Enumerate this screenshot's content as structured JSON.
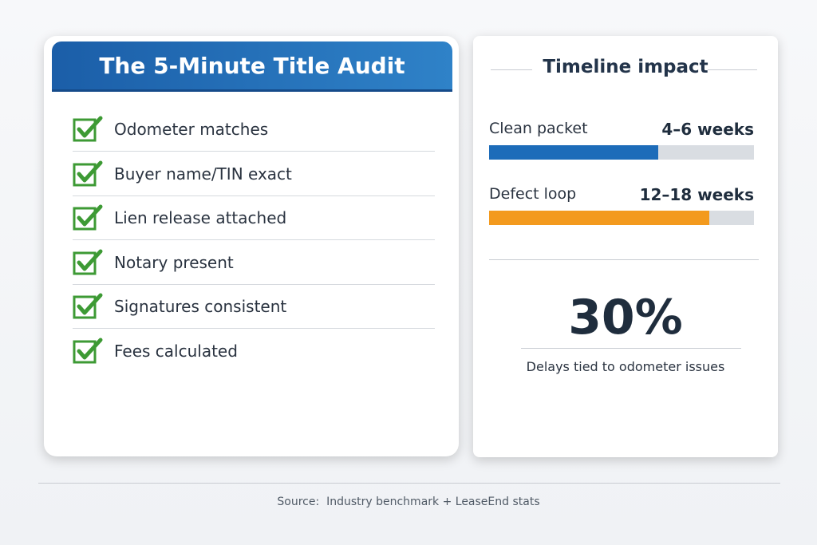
{
  "checklist": {
    "title": "The 5-Minute Title Audit",
    "items": [
      "Odometer matches",
      "Buyer name/TIN exact",
      "Lien release attached",
      "Notary present",
      "Signatures consistent",
      "Fees calculated"
    ]
  },
  "timeline": {
    "title": "Timeline impact",
    "rows": [
      {
        "label": "Clean packet",
        "value": "4–6 weeks",
        "fill_percent": 64,
        "color": "#1d6cb9"
      },
      {
        "label": "Defect loop",
        "value": "12–18 weeks",
        "fill_percent": 83,
        "color": "#f39a1e"
      }
    ],
    "stat": {
      "value": "30%",
      "caption": "Delays tied to odometer issues"
    }
  },
  "footer": {
    "source": "Source:  Industry benchmark + LeaseEnd stats"
  }
}
